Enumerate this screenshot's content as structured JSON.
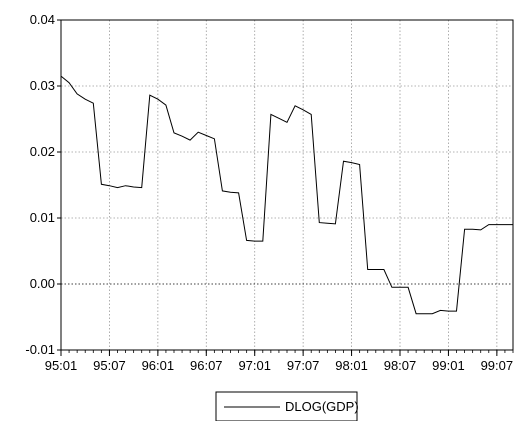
{
  "chart_data": {
    "type": "line",
    "title": "",
    "xlabel": "",
    "ylabel": "",
    "ylim": [
      -0.01,
      0.04
    ],
    "yticks": [
      "0.04",
      "0.03",
      "0.02",
      "0.01",
      "0.00",
      "-0.01"
    ],
    "ytick_values": [
      0.04,
      0.03,
      0.02,
      0.01,
      0.0,
      -0.01
    ],
    "xticks": [
      "95:01",
      "95:07",
      "96:01",
      "96:07",
      "97:01",
      "97:07",
      "98:01",
      "98:07",
      "99:01",
      "99:07"
    ],
    "x": [
      "95:01",
      "95:02",
      "95:03",
      "95:04",
      "95:05",
      "95:06",
      "95:07",
      "95:08",
      "95:09",
      "95:10",
      "95:11",
      "95:12",
      "96:01",
      "96:02",
      "96:03",
      "96:04",
      "96:05",
      "96:06",
      "96:07",
      "96:08",
      "96:09",
      "96:10",
      "96:11",
      "96:12",
      "97:01",
      "97:02",
      "97:03",
      "97:04",
      "97:05",
      "97:06",
      "97:07",
      "97:08",
      "97:09",
      "97:10",
      "97:11",
      "97:12",
      "98:01",
      "98:02",
      "98:03",
      "98:04",
      "98:05",
      "98:06",
      "98:07",
      "98:08",
      "98:09",
      "98:10",
      "98:11",
      "98:12",
      "99:01",
      "99:02",
      "99:03",
      "99:04",
      "99:05",
      "99:06",
      "99:07",
      "99:08",
      "99:09"
    ],
    "series": [
      {
        "name": "DLOG(GDP)",
        "color": "#000000",
        "values": [
          0.0315,
          0.0305,
          0.0288,
          0.028,
          0.0274,
          0.0151,
          0.0149,
          0.0146,
          0.0149,
          0.0147,
          0.0146,
          0.0286,
          0.028,
          0.0271,
          0.0229,
          0.0224,
          0.0218,
          0.023,
          0.0225,
          0.022,
          0.0141,
          0.0139,
          0.0138,
          0.0066,
          0.0065,
          0.0065,
          0.0257,
          0.0251,
          0.0245,
          0.027,
          0.0264,
          0.0257,
          0.0093,
          0.0092,
          0.0091,
          0.0186,
          0.0184,
          0.0181,
          0.0022,
          0.0022,
          0.0022,
          -0.0005,
          -0.0005,
          -0.0005,
          -0.0045,
          -0.0045,
          -0.0045,
          -0.004,
          -0.0041,
          -0.0041,
          0.0083,
          0.0083,
          0.0082,
          0.009,
          0.009,
          0.009,
          0.009
        ]
      }
    ],
    "zero_line": 0.0,
    "grid": true,
    "legend_position": "bottom-center"
  }
}
